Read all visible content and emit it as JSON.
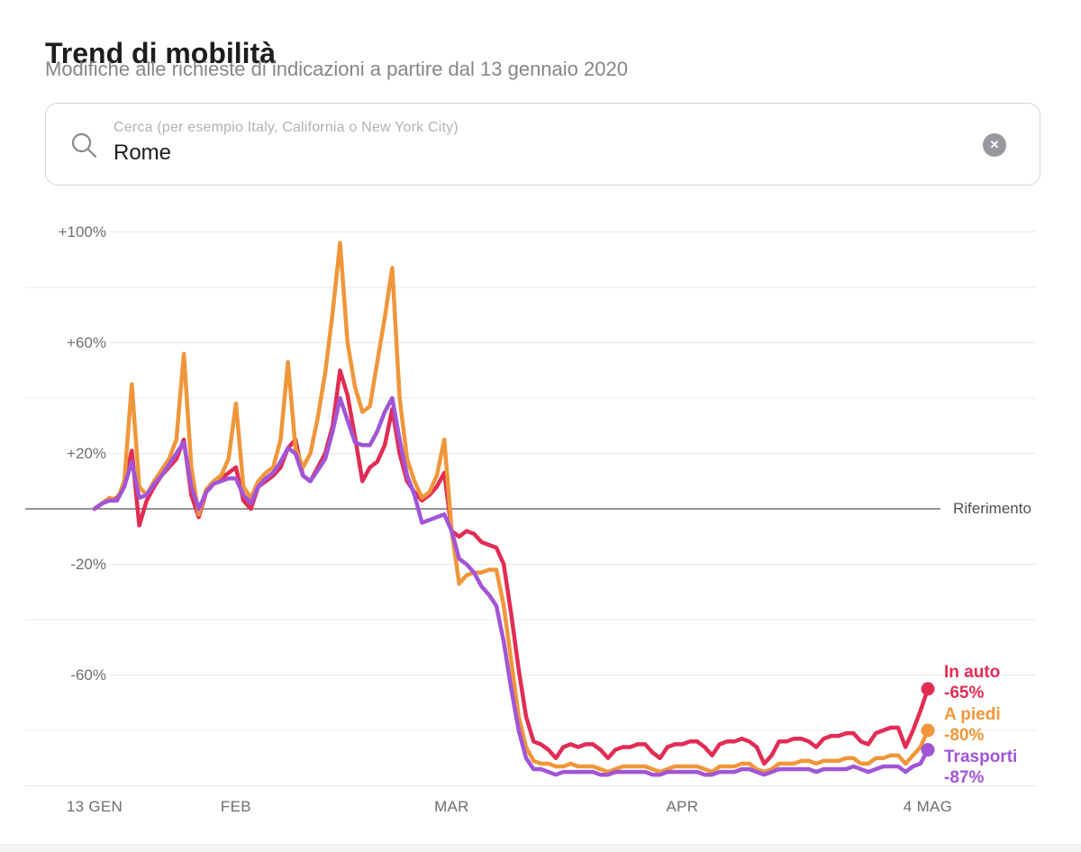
{
  "header": {
    "title": "Trend di mobilità",
    "subtitle": "Modifiche alle richieste di indicazioni a partire dal 13 gennaio 2020"
  },
  "search": {
    "label": "Cerca (per esempio Italy, California o New York City)",
    "value": "Rome",
    "icons": {
      "search": "magnifier",
      "clear": "circle-x",
      "clear_glyph": "✕"
    }
  },
  "chart_data": {
    "type": "line",
    "title": "Trend di mobilità - Rome",
    "x_start_label": "13 GEN",
    "x_tick_labels": [
      "13 GEN",
      "FEB",
      "MAR",
      "APR",
      "4 MAG"
    ],
    "x_tick_days": [
      0,
      19,
      48,
      79,
      112
    ],
    "x_range_days": 112,
    "y_tick_labels": [
      "+100%",
      "+60%",
      "+20%",
      "-20%",
      "-60%"
    ],
    "y_tick_values": [
      100,
      60,
      20,
      -20,
      -60
    ],
    "grid_step": 20,
    "ylim": [
      -100,
      100
    ],
    "grid": true,
    "baseline_value": 0,
    "baseline_label": "Riferimento",
    "legend_position": "right",
    "series": [
      {
        "name": "In auto",
        "final_label": "-65%",
        "color": "#e22c54",
        "values": [
          0,
          2,
          3,
          4,
          8,
          21,
          -6,
          3,
          8,
          12,
          15,
          18,
          25,
          5,
          -3,
          6,
          9,
          11,
          13,
          15,
          3,
          0,
          8,
          10,
          12,
          15,
          22,
          25,
          12,
          10,
          15,
          20,
          30,
          50,
          41,
          26,
          10,
          15,
          17,
          23,
          36,
          20,
          10,
          6,
          3,
          5,
          8,
          13,
          -8,
          -10,
          -8,
          -9,
          -12,
          -13,
          -14,
          -20,
          -38,
          -58,
          -75,
          -84,
          -85,
          -87,
          -90,
          -86,
          -85,
          -86,
          -85,
          -85,
          -87,
          -90,
          -87,
          -86,
          -86,
          -85,
          -85,
          -88,
          -90,
          -86,
          -85,
          -85,
          -84,
          -84,
          -86,
          -89,
          -85,
          -84,
          -84,
          -83,
          -84,
          -86,
          -92,
          -89,
          -84,
          -84,
          -83,
          -83,
          -84,
          -86,
          -83,
          -82,
          -82,
          -81,
          -81,
          -84,
          -85,
          -81,
          -80,
          -79,
          -79,
          -86,
          -80,
          -73,
          -65
        ]
      },
      {
        "name": "A piedi",
        "final_label": "-80%",
        "color": "#f0963a",
        "values": [
          0,
          2,
          4,
          3,
          10,
          45,
          8,
          5,
          10,
          14,
          18,
          25,
          56,
          15,
          -2,
          7,
          10,
          12,
          18,
          38,
          8,
          4,
          10,
          13,
          15,
          25,
          53,
          22,
          15,
          20,
          33,
          49,
          71,
          96,
          60,
          44,
          35,
          37,
          53,
          69,
          87,
          40,
          18,
          10,
          4,
          6,
          12,
          25,
          -8,
          -27,
          -24,
          -23,
          -23,
          -22,
          -22,
          -35,
          -55,
          -75,
          -86,
          -91,
          -92,
          -92,
          -93,
          -93,
          -92,
          -93,
          -93,
          -93,
          -94,
          -95,
          -94,
          -93,
          -93,
          -93,
          -93,
          -94,
          -95,
          -94,
          -93,
          -93,
          -93,
          -93,
          -94,
          -95,
          -93,
          -93,
          -93,
          -92,
          -92,
          -94,
          -95,
          -94,
          -92,
          -92,
          -92,
          -91,
          -91,
          -92,
          -91,
          -91,
          -91,
          -90,
          -90,
          -92,
          -92,
          -90,
          -90,
          -89,
          -89,
          -92,
          -89,
          -86,
          -80
        ]
      },
      {
        "name": "Trasporti",
        "final_label": "-87%",
        "color": "#a155d6",
        "values": [
          0,
          2,
          3,
          3,
          8,
          17,
          4,
          5,
          9,
          12,
          16,
          20,
          24,
          8,
          0,
          6,
          9,
          10,
          11,
          11,
          5,
          2,
          8,
          11,
          13,
          17,
          22,
          20,
          12,
          10,
          14,
          18,
          28,
          40,
          32,
          24,
          23,
          23,
          28,
          35,
          40,
          25,
          12,
          5,
          -5,
          -4,
          -3,
          -2,
          -8,
          -18,
          -20,
          -23,
          -28,
          -31,
          -35,
          -48,
          -65,
          -80,
          -90,
          -94,
          -94,
          -95,
          -96,
          -95,
          -95,
          -95,
          -95,
          -95,
          -96,
          -96,
          -95,
          -95,
          -95,
          -95,
          -95,
          -96,
          -96,
          -95,
          -95,
          -95,
          -95,
          -95,
          -96,
          -96,
          -95,
          -95,
          -95,
          -94,
          -94,
          -95,
          -96,
          -95,
          -94,
          -94,
          -94,
          -94,
          -94,
          -95,
          -94,
          -94,
          -94,
          -94,
          -93,
          -94,
          -95,
          -94,
          -93,
          -93,
          -93,
          -95,
          -93,
          -92,
          -87
        ]
      }
    ]
  }
}
